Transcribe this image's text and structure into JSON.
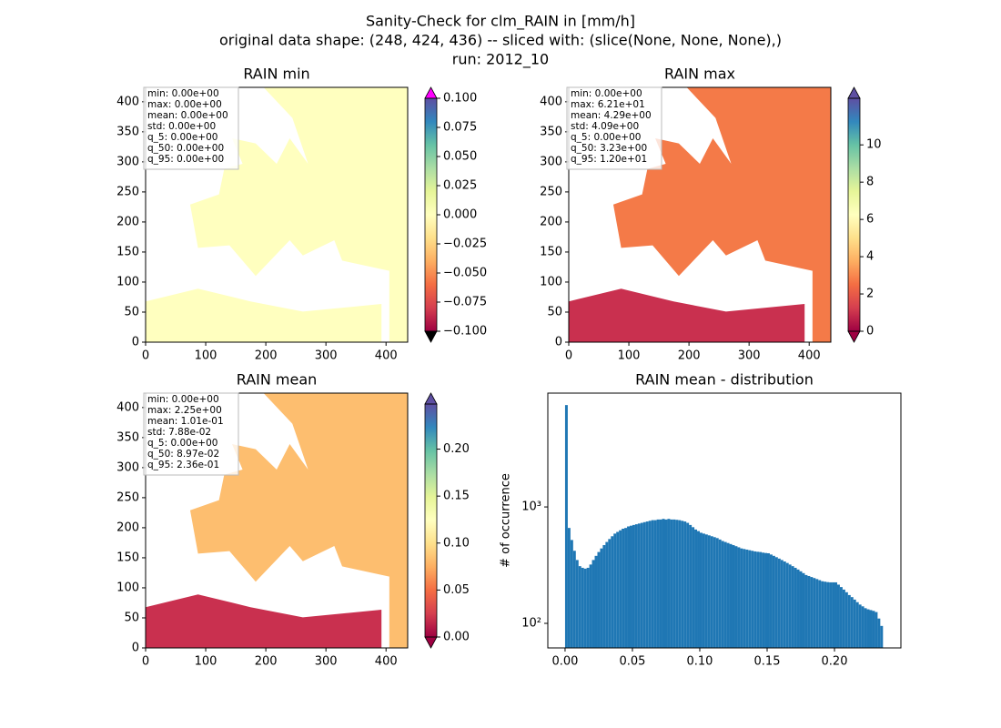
{
  "title": [
    "Sanity-Check for clm_RAIN in [mm/h]",
    "original data shape: (248, 424, 436) -- sliced with: (slice(None, None, None),)",
    "run: 2012_10"
  ],
  "chart_data": [
    {
      "type": "heatmap",
      "title": "RAIN min",
      "xlim": [
        0,
        436
      ],
      "xticks": [
        0,
        100,
        200,
        300,
        400
      ],
      "ylim": [
        0,
        424
      ],
      "yticks": [
        0,
        50,
        100,
        150,
        200,
        250,
        300,
        350,
        400
      ],
      "stats": [
        "min: 0.00e+00",
        "max: 0.00e+00",
        "mean: 0.00e+00",
        "std: 0.00e+00",
        "q_5: 0.00e+00",
        "q_50: 0.00e+00",
        "q_95: 0.00e+00"
      ],
      "colorbar": {
        "cmap": "Spectral",
        "lim": [
          -0.1,
          0.1
        ],
        "extend": "both",
        "over_color": "#ff00ff",
        "under_color": "#000000",
        "ticks": [
          {
            "value": -0.1,
            "label": "−0.100"
          },
          {
            "value": -0.075,
            "label": "−0.075"
          },
          {
            "value": -0.05,
            "label": "−0.050"
          },
          {
            "value": -0.025,
            "label": "−0.025"
          },
          {
            "value": 0,
            "label": "0.000"
          },
          {
            "value": 0.025,
            "label": "0.025"
          },
          {
            "value": 0.05,
            "label": "0.050"
          },
          {
            "value": 0.075,
            "label": "0.075"
          },
          {
            "value": 0.1,
            "label": "0.100"
          }
        ]
      }
    },
    {
      "type": "heatmap",
      "title": "RAIN max",
      "xlim": [
        0,
        436
      ],
      "xticks": [
        0,
        100,
        200,
        300,
        400
      ],
      "ylim": [
        0,
        424
      ],
      "yticks": [
        0,
        50,
        100,
        150,
        200,
        250,
        300,
        350,
        400
      ],
      "stats": [
        "min: 0.00e+00",
        "max: 6.21e+01",
        "mean: 4.29e+00",
        "std: 4.09e+00",
        "q_5: 0.00e+00",
        "q_50: 3.23e+00",
        "q_95: 1.20e+01"
      ],
      "colorbar": {
        "cmap": "Spectral",
        "lim": [
          0,
          12.5
        ],
        "extend": "both",
        "ticks": [
          0,
          2,
          4,
          6,
          8,
          10
        ]
      }
    },
    {
      "type": "heatmap",
      "title": "RAIN mean",
      "xlim": [
        0,
        436
      ],
      "xticks": [
        0,
        100,
        200,
        300,
        400
      ],
      "ylim": [
        0,
        424
      ],
      "yticks": [
        0,
        50,
        100,
        150,
        200,
        250,
        300,
        350,
        400
      ],
      "stats": [
        "min: 0.00e+00",
        "max: 2.25e+00",
        "mean: 1.01e-01",
        "std: 7.88e-02",
        "q_5: 0.00e+00",
        "q_50: 8.97e-02",
        "q_95: 2.36e-01"
      ],
      "colorbar": {
        "cmap": "Spectral",
        "lim": [
          0,
          0.248
        ],
        "extend": "both",
        "ticks": [
          {
            "value": 0,
            "label": "0.00"
          },
          {
            "value": 0.05,
            "label": "0.05"
          },
          {
            "value": 0.1,
            "label": "0.10"
          },
          {
            "value": 0.15,
            "label": "0.15"
          },
          {
            "value": 0.2,
            "label": "0.20"
          }
        ]
      }
    },
    {
      "type": "histogram",
      "title": "RAIN mean - distribution",
      "ylabel": "# of occurrence",
      "color": "#1f77b4",
      "yscale": "log",
      "xlim": [
        -0.0128,
        0.2493
      ],
      "xticks": [
        {
          "value": 0,
          "label": "0.00"
        },
        {
          "value": 0.05,
          "label": "0.05"
        },
        {
          "value": 0.1,
          "label": "0.10"
        },
        {
          "value": 0.15,
          "label": "0.15"
        },
        {
          "value": 0.2,
          "label": "0.20"
        }
      ],
      "ylim": [
        61.5,
        9500
      ],
      "yticks": [
        {
          "value": 100,
          "label": "10²"
        },
        {
          "value": 1000,
          "label": "10³"
        }
      ],
      "bins": [
        0,
        0.002,
        0.004,
        0.006,
        0.008,
        0.01,
        0.012,
        0.014,
        0.016,
        0.018,
        0.02,
        0.022,
        0.024,
        0.026,
        0.028,
        0.03,
        0.032,
        0.034,
        0.036,
        0.038,
        0.04,
        0.042,
        0.044,
        0.046,
        0.048,
        0.05,
        0.052,
        0.054,
        0.056,
        0.058,
        0.06,
        0.062,
        0.064,
        0.066,
        0.068,
        0.07,
        0.072,
        0.074,
        0.076,
        0.078,
        0.08,
        0.082,
        0.084,
        0.086,
        0.088,
        0.09,
        0.092,
        0.094,
        0.096,
        0.098,
        0.1,
        0.102,
        0.104,
        0.106,
        0.108,
        0.11,
        0.112,
        0.114,
        0.116,
        0.118,
        0.12,
        0.122,
        0.124,
        0.126,
        0.128,
        0.13,
        0.132,
        0.134,
        0.136,
        0.138,
        0.14,
        0.142,
        0.144,
        0.146,
        0.148,
        0.15,
        0.152,
        0.154,
        0.156,
        0.158,
        0.16,
        0.162,
        0.164,
        0.166,
        0.168,
        0.17,
        0.172,
        0.174,
        0.176,
        0.178,
        0.18,
        0.182,
        0.184,
        0.186,
        0.188,
        0.19,
        0.192,
        0.194,
        0.196,
        0.198,
        0.2,
        0.202,
        0.204,
        0.206,
        0.208,
        0.21,
        0.212,
        0.214,
        0.216,
        0.218,
        0.22,
        0.222,
        0.224,
        0.226,
        0.228,
        0.23,
        0.232,
        0.234,
        0.236
      ],
      "counts": [
        7500,
        660,
        520,
        420,
        350,
        310,
        300,
        295,
        300,
        320,
        350,
        380,
        410,
        440,
        470,
        500,
        530,
        560,
        590,
        610,
        630,
        650,
        660,
        680,
        690,
        700,
        710,
        720,
        730,
        740,
        750,
        760,
        770,
        770,
        780,
        780,
        790,
        780,
        790,
        780,
        780,
        775,
        770,
        760,
        750,
        730,
        700,
        670,
        640,
        620,
        600,
        590,
        580,
        570,
        560,
        550,
        540,
        525,
        510,
        500,
        490,
        480,
        470,
        460,
        450,
        440,
        435,
        430,
        425,
        420,
        415,
        412,
        410,
        405,
        402,
        400,
        390,
        380,
        370,
        360,
        350,
        340,
        330,
        320,
        310,
        300,
        290,
        280,
        270,
        260,
        255,
        250,
        245,
        240,
        235,
        230,
        228,
        226,
        225,
        225,
        225,
        215,
        205,
        195,
        185,
        175,
        168,
        160,
        152,
        145,
        140,
        135,
        132,
        130,
        128,
        125,
        110,
        95
      ]
    }
  ]
}
